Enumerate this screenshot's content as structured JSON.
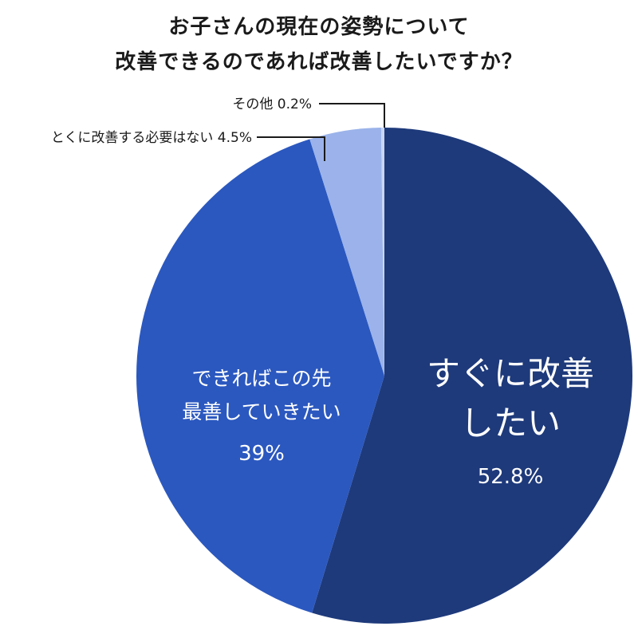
{
  "title": {
    "line1": "お子さんの現在の姿勢について",
    "line2": "改善できるのであれば改善したいですか？"
  },
  "chart_data": {
    "type": "pie",
    "title": "お子さんの現在の姿勢について 改善できるのであれば改善したいですか？",
    "slices": [
      {
        "label_lines": [
          "すぐに改善",
          "したい"
        ],
        "value": 52.8,
        "value_text": "52.8%",
        "color": "#1e3a7b"
      },
      {
        "label_lines": [
          "できればこの先",
          "最善していきたい"
        ],
        "value": 39,
        "value_text": "39%",
        "color": "#2b58bf"
      },
      {
        "label_lines": [
          "とくに改善する必要はない"
        ],
        "value": 4.5,
        "value_text": "4.5%",
        "color": "#9bb3ea"
      },
      {
        "label_lines": [
          "その他"
        ],
        "value": 0.2,
        "value_text": "0.2%",
        "color": "#c9d6f3"
      }
    ]
  },
  "callouts": {
    "other": "その他  0.2%",
    "no_need": "とくに改善する必要はない  4.5%"
  }
}
